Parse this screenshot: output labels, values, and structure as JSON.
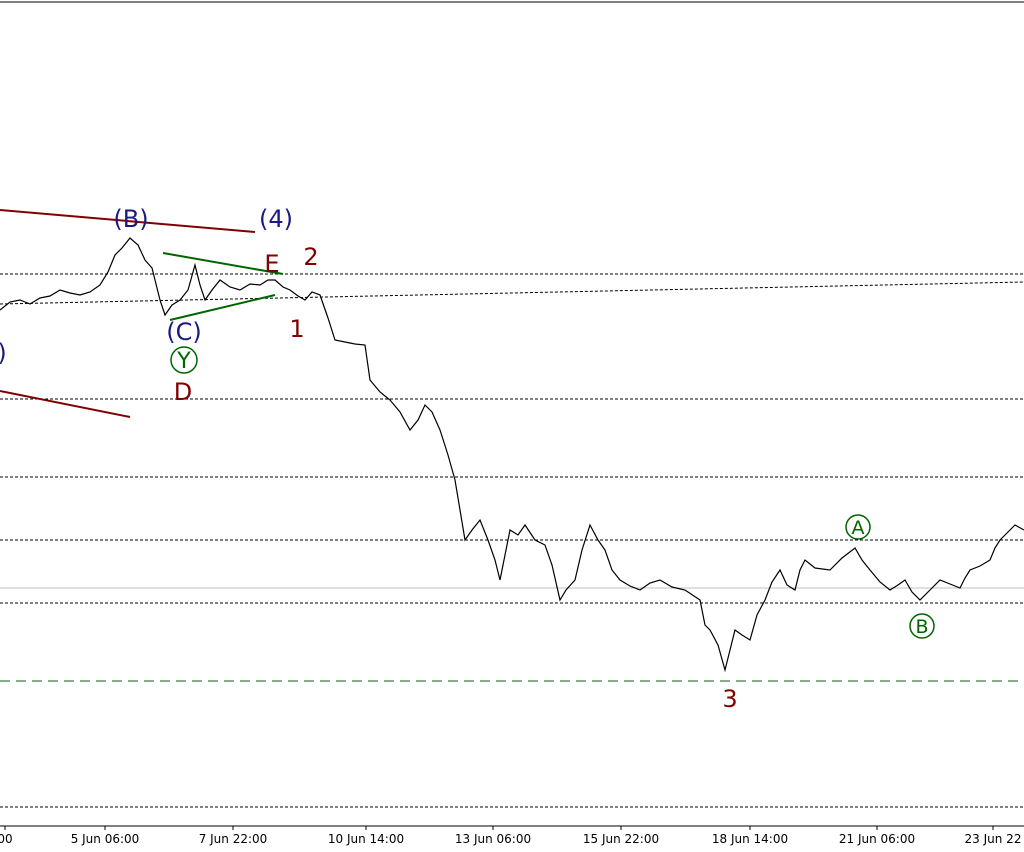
{
  "annotations": {
    "wave_b_paren": "(B)",
    "wave_4_paren": "(4)",
    "wave_e": "E",
    "wave_2": "2",
    "wave_1": "1",
    "wave_c_paren": "(C)",
    "wave_y_circled": "Y",
    "wave_d": "D",
    "left_paren": ")",
    "wave_3": "3",
    "wave_a_circled": "A",
    "wave_b_circled": "B"
  },
  "x_axis": {
    "labels": [
      "00",
      "5 Jun 06:00",
      "7 Jun 22:00",
      "10 Jun 14:00",
      "13 Jun 06:00",
      "15 Jun 22:00",
      "18 Jun 14:00",
      "21 Jun 06:00",
      "23 Jun 22"
    ]
  }
}
